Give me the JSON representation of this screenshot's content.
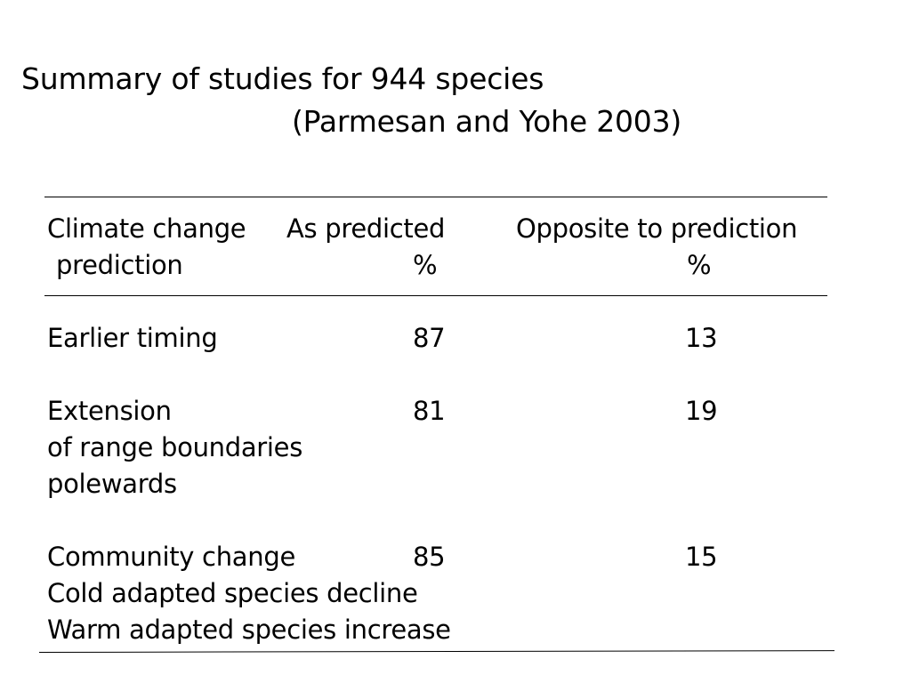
{
  "title": "Summary of studies for 944 species",
  "subtitle": "(Parmesan and Yohe 2003)",
  "table": {
    "header": {
      "col1": [
        "Climate change",
        "prediction"
      ],
      "col2": [
        "As predicted",
        "%"
      ],
      "col3": [
        "Opposite to prediction",
        "%"
      ]
    },
    "rows": [
      {
        "label_lines": [
          "Earlier timing"
        ],
        "as_predicted": "87",
        "opposite": "13"
      },
      {
        "label_lines": [
          "Extension",
          "of range boundaries",
          "polewards"
        ],
        "as_predicted": "81",
        "opposite": "19"
      },
      {
        "label_lines": [
          "Community change",
          "Cold adapted species decline",
          "Warm adapted species increase"
        ],
        "as_predicted": "85",
        "opposite": "15"
      }
    ]
  }
}
